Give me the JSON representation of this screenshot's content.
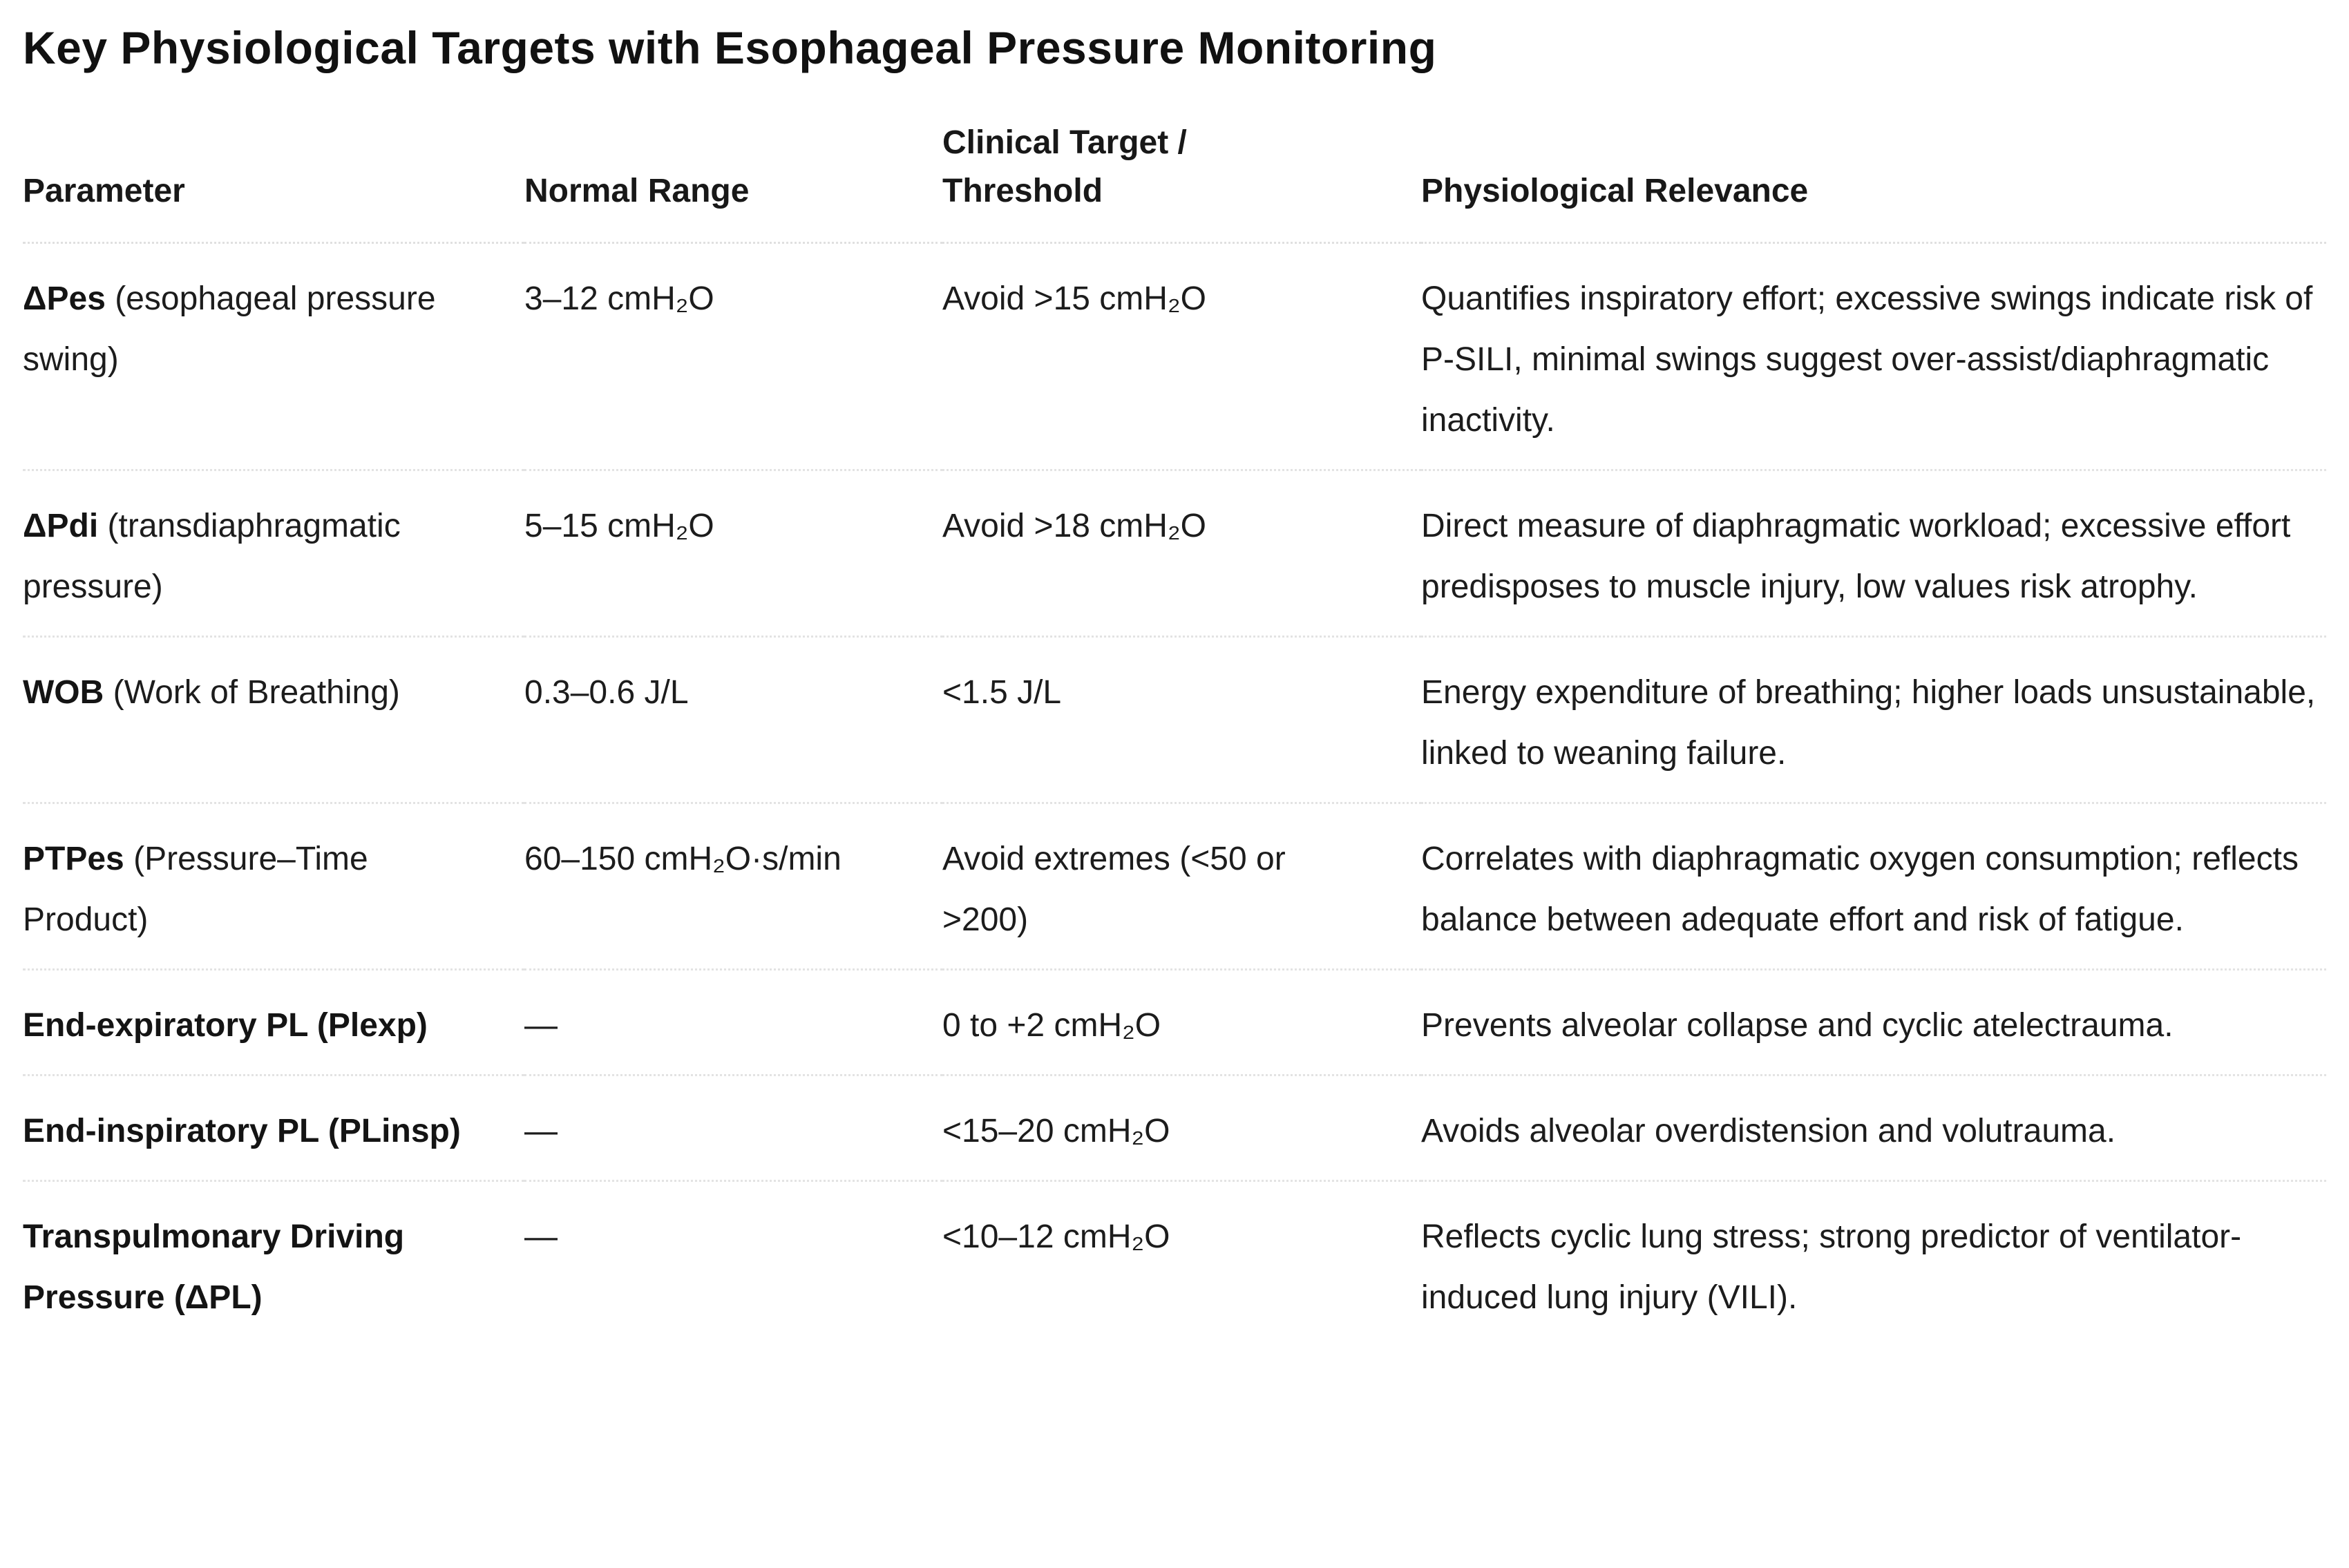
{
  "page": {
    "title": "Key Physiological Targets with Esophageal Pressure Monitoring"
  },
  "colors": {
    "background": "#ffffff",
    "text": "#1c1c1c",
    "divider": "#e3e3e3"
  },
  "table": {
    "headers": {
      "parameter": "Parameter",
      "normal_range": "Normal Range",
      "clinical_target": "Clinical Target /\nThreshold",
      "relevance": "Physiological Relevance"
    },
    "rows": [
      {
        "param_bold": "ΔPes",
        "param_rest": " (esophageal pressure swing)",
        "normal_range": "3–12 cmH₂O",
        "clinical_target": "Avoid >15 cmH₂O",
        "relevance": "Quantifies inspiratory effort; excessive swings indicate risk of P-SILI, minimal swings suggest over-assist/diaphragmatic inactivity."
      },
      {
        "param_bold": "ΔPdi",
        "param_rest": " (transdiaphragmatic pressure)",
        "normal_range": "5–15 cmH₂O",
        "clinical_target": "Avoid >18 cmH₂O",
        "relevance": "Direct measure of diaphragmatic workload; excessive effort predisposes to muscle injury, low values risk atrophy."
      },
      {
        "param_bold": "WOB",
        "param_rest": " (Work of Breathing)",
        "normal_range": "0.3–0.6 J/L",
        "clinical_target": "<1.5 J/L",
        "relevance": "Energy expenditure of breathing; higher loads unsustainable, linked to weaning failure."
      },
      {
        "param_bold": "PTPes",
        "param_rest": " (Pressure–Time Product)",
        "normal_range": "60–150 cmH₂O·s/min",
        "clinical_target": "Avoid extremes (<50 or >200)",
        "relevance": "Correlates with diaphragmatic oxygen consumption; reflects balance between adequate effort and risk of fatigue."
      },
      {
        "param_bold": "End-expiratory PL (Plexp)",
        "param_rest": "",
        "normal_range": "—",
        "clinical_target": "0 to +2 cmH₂O",
        "relevance": "Prevents alveolar collapse and cyclic atelectrauma."
      },
      {
        "param_bold": "End-inspiratory PL (PLinsp)",
        "param_rest": "",
        "normal_range": "—",
        "clinical_target": "<15–20 cmH₂O",
        "relevance": "Avoids alveolar overdistension and volutrauma."
      },
      {
        "param_bold": "Transpulmonary Driving Pressure (ΔPL)",
        "param_rest": "",
        "normal_range": "—",
        "clinical_target": "<10–12 cmH₂O",
        "relevance": "Reflects cyclic lung stress; strong predictor of ventilator-induced lung injury (VILI)."
      }
    ]
  }
}
